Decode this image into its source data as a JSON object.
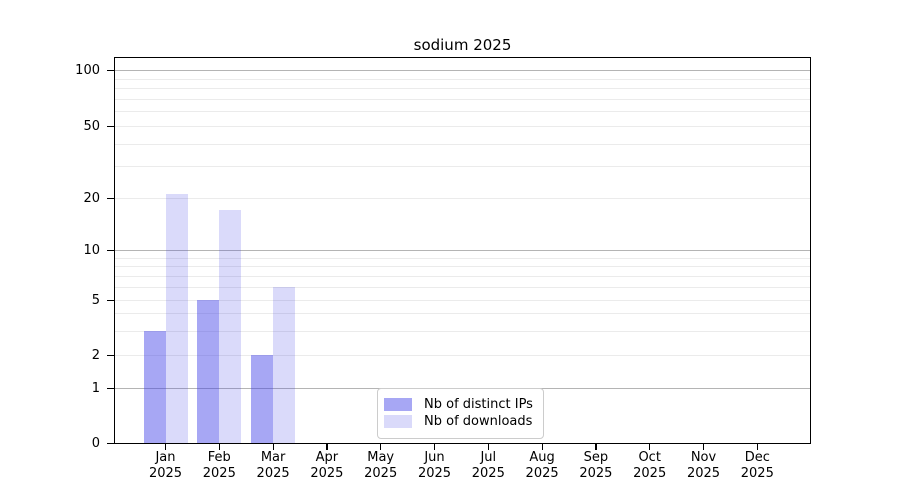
{
  "chart_data": {
    "type": "bar",
    "title": "sodium 2025",
    "x": {
      "months": [
        "Jan",
        "Feb",
        "Mar",
        "Apr",
        "May",
        "Jun",
        "Jul",
        "Aug",
        "Sep",
        "Oct",
        "Nov",
        "Dec"
      ],
      "year": "2025"
    },
    "series": [
      {
        "name": "Nb of distinct IPs",
        "color": "rgba(60,60,230,0.45)",
        "values": [
          3,
          5,
          2,
          0,
          0,
          0,
          0,
          0,
          0,
          0,
          0,
          0
        ]
      },
      {
        "name": "Nb of downloads",
        "color": "rgba(60,60,230,0.19)",
        "values": [
          21,
          17,
          6,
          0,
          0,
          0,
          0,
          0,
          0,
          0,
          0,
          0
        ]
      }
    ],
    "yscale": "log-like (0,1 linear then logarithmic)",
    "ylim": [
      0,
      100
    ],
    "yticks": [
      0,
      1,
      2,
      5,
      10,
      20,
      50,
      100
    ],
    "grid": "on",
    "grid_values": [
      1,
      2,
      3,
      4,
      5,
      6,
      7,
      8,
      9,
      10,
      20,
      30,
      40,
      50,
      60,
      70,
      80,
      90,
      100
    ],
    "grid_major_values": [
      1,
      10,
      100
    ],
    "legend_position": "bottom-center-inside",
    "colors": {
      "grid_minor": "#ebebeb",
      "grid_major": "#b4b4b4",
      "axis": "#000000",
      "legend_border": "#cccccc"
    }
  }
}
